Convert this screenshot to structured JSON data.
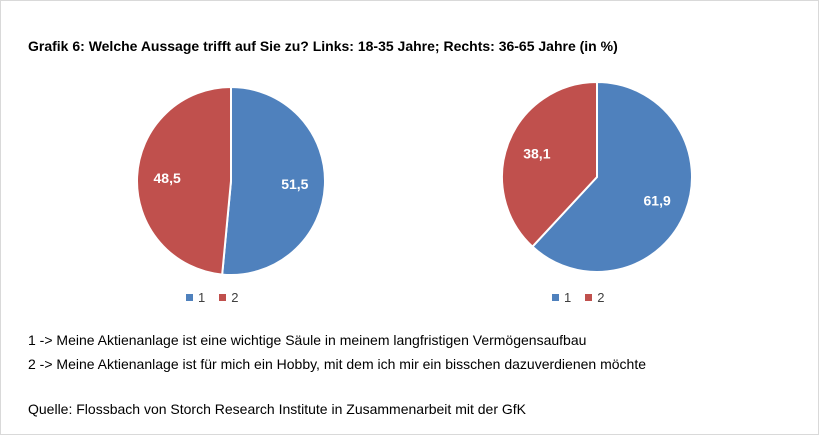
{
  "title": "Grafik 6: Welche Aussage trifft auf Sie zu? Links: 18-35 Jahre; Rechts: 36-65 Jahre (in %)",
  "colors": {
    "series1": "#4f81bd",
    "series2": "#c0504d"
  },
  "chart_data": [
    {
      "type": "pie",
      "categories": [
        "1",
        "2"
      ],
      "values": [
        51.5,
        48.5
      ],
      "value_labels": [
        "51,5",
        "48,5"
      ],
      "legend_position": "bottom"
    },
    {
      "type": "pie",
      "categories": [
        "1",
        "2"
      ],
      "values": [
        61.9,
        38.1
      ],
      "value_labels": [
        "61,9",
        "38,1"
      ],
      "legend_position": "bottom"
    }
  ],
  "notes": [
    "1 -> Meine Aktienanlage ist eine wichtige Säule in meinem langfristigen Vermögensaufbau",
    "2 -> Meine Aktienanlage ist für mich ein Hobby, mit dem ich mir ein bisschen dazuverdienen möchte"
  ],
  "source": "Quelle: Flossbach von Storch Research Institute in Zusammenarbeit mit der GfK"
}
